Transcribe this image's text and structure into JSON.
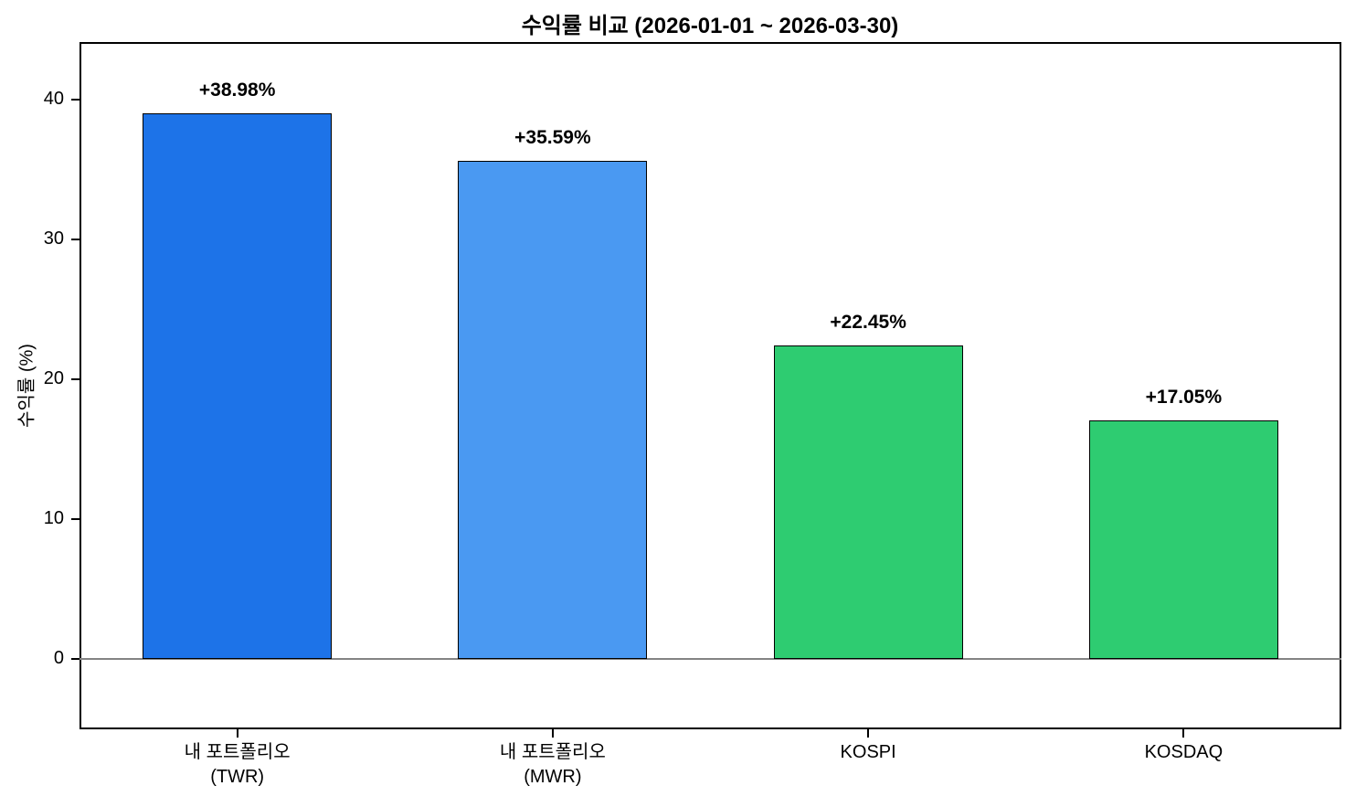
{
  "chart_data": {
    "type": "bar",
    "title": "수익률 비교 (2026-01-01 ~ 2026-03-30)",
    "ylabel": "수익률 (%)",
    "xlabel": "",
    "categories": [
      "내 포트폴리오\n(TWR)",
      "내 포트폴리오\n(MWR)",
      "KOSPI",
      "KOSDAQ"
    ],
    "values": [
      38.98,
      35.59,
      22.45,
      17.05
    ],
    "bar_labels": [
      "+38.98%",
      "+35.59%",
      "+22.45%",
      "+17.05%"
    ],
    "bar_colors": [
      "#1d73e8",
      "#4a99f2",
      "#2ecc71",
      "#2ecc71"
    ],
    "bar_edge_color": "#000000",
    "zero_line_color": "#848484",
    "yticks": [
      0,
      10,
      20,
      30,
      40
    ],
    "ylim": [
      -5,
      44.1
    ],
    "bar_width_fraction": 0.6,
    "grid": false,
    "legend_position": "none"
  }
}
